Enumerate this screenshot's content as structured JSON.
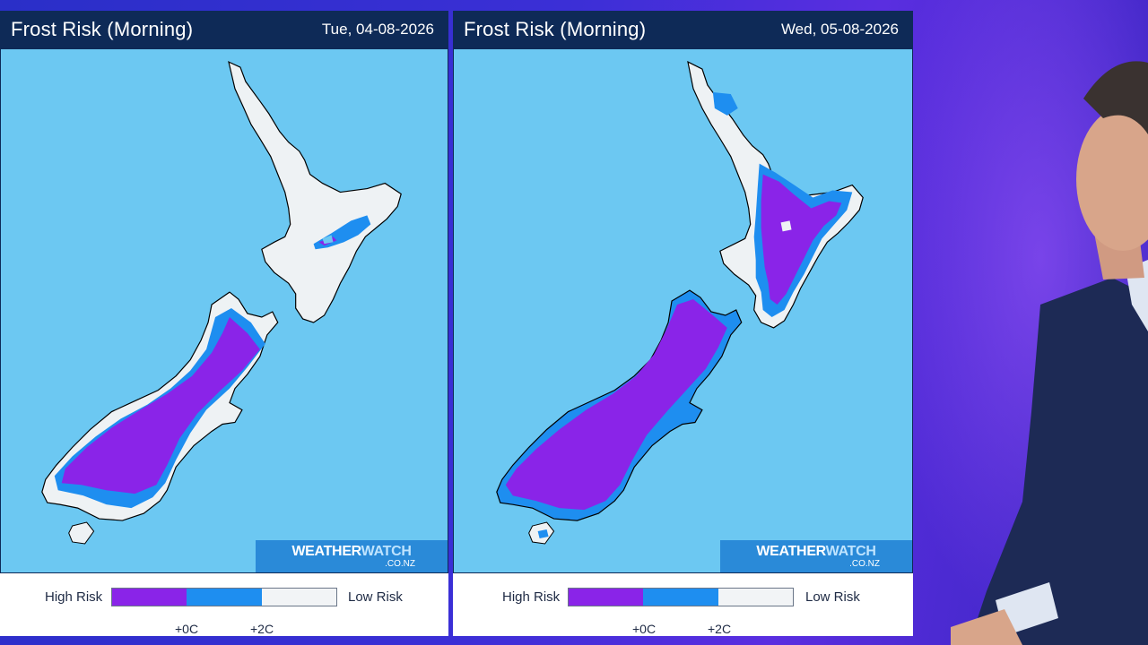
{
  "panels": [
    {
      "title": "Frost Risk (Morning)",
      "date": "Tue, 04-08-2026",
      "brand": {
        "part1": "WEATHER",
        "part2": "WATCH",
        "sub": ".CO.NZ"
      },
      "legend": {
        "high": "High Risk",
        "low": "Low Risk",
        "tick1": "+0C",
        "tick2": "+2C"
      }
    },
    {
      "title": "Frost Risk (Morning)",
      "date": "Wed, 05-08-2026",
      "brand": {
        "part1": "WEATHER",
        "part2": "WATCH",
        "sub": ".CO.NZ"
      },
      "legend": {
        "high": "High Risk",
        "low": "Low Risk",
        "tick1": "+0C",
        "tick2": "+2C"
      }
    }
  ],
  "colors": {
    "high_risk": "#8a24e8",
    "mid_risk": "#1e8ef0",
    "low_risk": "#eef2f4",
    "sea": "#6cc8f2",
    "header": "#0e2a57"
  }
}
